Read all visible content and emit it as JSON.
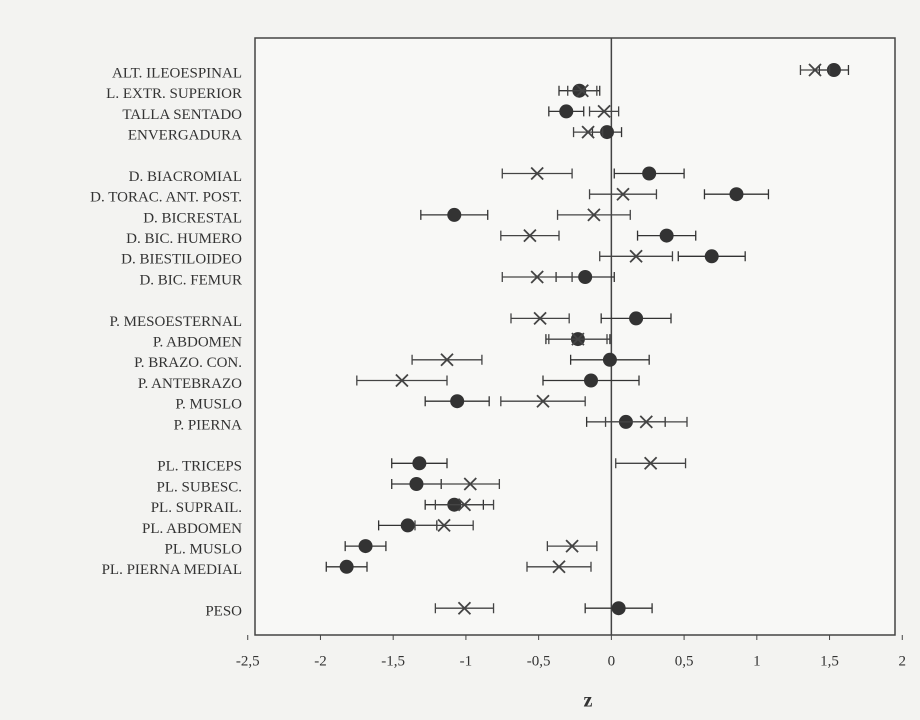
{
  "chart_data": {
    "type": "dot-errorbar",
    "xlabel": "z",
    "categories": [
      "ALT. ILEOESPINAL",
      "L. EXTR. SUPERIOR",
      "TALLA SENTADO",
      "ENVERGADURA",
      "D. BIACROMIAL",
      "D. TORAC. ANT. POST.",
      "D. BICRESTAL",
      "D. BIC. HUMERO",
      "D. BIESTILOIDEO",
      "D. BIC. FEMUR",
      "P. MESOESTERNAL",
      "P. ABDOMEN",
      "P. BRAZO. CON.",
      "P. ANTEBRAZO",
      "P. MUSLO",
      "P. PIERNA",
      "PL. TRICEPS",
      "PL. SUBESC.",
      "PL. SUPRAIL.",
      "PL. ABDOMEN",
      "PL. MUSLO",
      "PL. PIERNA MEDIAL",
      "PESO"
    ],
    "series": [
      {
        "marker": "circle",
        "color": "#333333",
        "values": [
          1.53,
          -0.22,
          -0.31,
          -0.03,
          0.26,
          0.86,
          -1.08,
          0.38,
          0.69,
          -0.18,
          0.17,
          -0.23,
          -0.01,
          -0.14,
          -1.06,
          0.1,
          -1.32,
          -1.34,
          -1.08,
          -1.4,
          -1.69,
          -1.82,
          0.05
        ],
        "errors": [
          0.1,
          0.14,
          0.12,
          0.1,
          0.24,
          0.22,
          0.23,
          0.2,
          0.23,
          0.2,
          0.24,
          0.22,
          0.27,
          0.33,
          0.22,
          0.27,
          0.19,
          0.17,
          0.2,
          0.2,
          0.14,
          0.14,
          0.23
        ]
      },
      {
        "marker": "cross",
        "color": "#444444",
        "values": [
          1.4,
          -0.2,
          -0.05,
          -0.16,
          -0.51,
          0.08,
          -0.12,
          -0.56,
          0.17,
          -0.51,
          -0.49,
          -0.23,
          -1.13,
          -1.44,
          -0.47,
          0.24,
          0.27,
          -0.97,
          -1.01,
          -1.15,
          -0.27,
          -0.36,
          -1.01
        ],
        "errors": [
          0.1,
          0.1,
          0.1,
          0.1,
          0.24,
          0.23,
          0.25,
          0.2,
          0.25,
          0.24,
          0.2,
          0.2,
          0.24,
          0.31,
          0.29,
          0.28,
          0.24,
          0.2,
          0.2,
          0.2,
          0.17,
          0.22,
          0.2
        ]
      }
    ],
    "xlim": [
      -2.45,
      1.95
    ],
    "xticks": [
      {
        "value": -2.5,
        "label": "-2,5"
      },
      -2,
      {
        "value": -1.5,
        "label": "-1,5"
      },
      -1,
      {
        "value": -0.5,
        "label": "-0,5"
      },
      0,
      {
        "value": 0.5,
        "label": "0,5"
      },
      1,
      {
        "value": 1.5,
        "label": "1,5"
      },
      2
    ]
  }
}
